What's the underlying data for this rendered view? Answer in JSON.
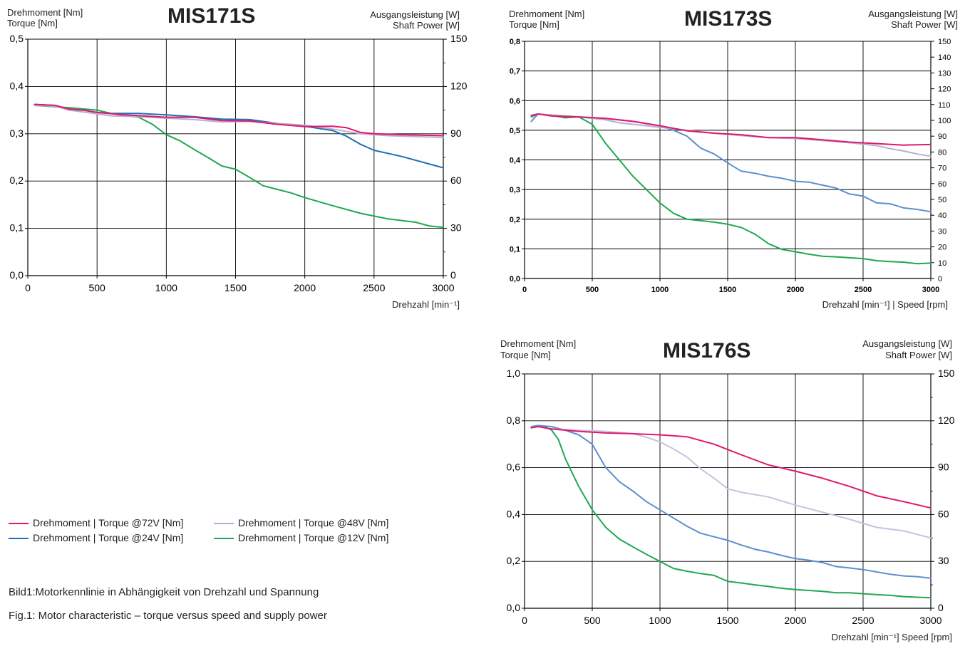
{
  "chart_data": [
    {
      "type": "line",
      "title": "MIS171S",
      "ylabel_left": [
        "Drehmoment [Nm]",
        "Torque [Nm]"
      ],
      "ylabel_right": [
        "Ausgangsleistung [W]",
        "Shaft  Power [W]"
      ],
      "xlabel": "Drehzahl [min⁻¹]",
      "x_ticks": [
        "0",
        "500",
        "1000",
        "1500",
        "2000",
        "2500",
        "3000"
      ],
      "y_ticks": [
        "0,0",
        "0,1",
        "0,2",
        "0,3",
        "0,4",
        "0,5"
      ],
      "y2_ticks": [
        "0",
        "30",
        "60",
        "90",
        "120",
        "150"
      ],
      "xlim": [
        0,
        3000
      ],
      "ylim": [
        0,
        0.5
      ],
      "y2lim": [
        0,
        150
      ],
      "grid": true,
      "series": [
        {
          "name": "Drehmoment | Torque @72V [Nm]",
          "color": "#e0186c",
          "x": [
            50,
            200,
            300,
            400,
            500,
            700,
            1000,
            1200,
            1400,
            1600,
            1800,
            2000,
            2200,
            2300,
            2400,
            2500,
            2700,
            3000
          ],
          "y": [
            0.362,
            0.36,
            0.352,
            0.35,
            0.345,
            0.34,
            0.335,
            0.335,
            0.328,
            0.327,
            0.32,
            0.315,
            0.316,
            0.313,
            0.303,
            0.3,
            0.298,
            0.296
          ]
        },
        {
          "name": "Drehmoment | Torque @48V [Nm]",
          "color": "#b7aed4",
          "x": [
            50,
            200,
            300,
            500,
            600,
            800,
            1000,
            1200,
            1400,
            1600,
            1800,
            2000,
            2200,
            2400,
            2600,
            2800,
            3000
          ],
          "y": [
            0.36,
            0.358,
            0.35,
            0.342,
            0.338,
            0.336,
            0.333,
            0.33,
            0.325,
            0.326,
            0.322,
            0.318,
            0.31,
            0.3,
            0.296,
            0.294,
            0.292
          ]
        },
        {
          "name": "Drehmoment | Torque @24V [Nm]",
          "color": "#1f6fb4",
          "x": [
            50,
            200,
            300,
            400,
            500,
            600,
            800,
            1000,
            1200,
            1400,
            1600,
            1800,
            2000,
            2200,
            2300,
            2400,
            2500,
            2700,
            3000
          ],
          "y": [
            0.362,
            0.36,
            0.35,
            0.35,
            0.345,
            0.343,
            0.343,
            0.34,
            0.336,
            0.331,
            0.33,
            0.322,
            0.316,
            0.307,
            0.295,
            0.278,
            0.265,
            0.252,
            0.228
          ]
        },
        {
          "name": "Drehmoment | Torque @12V [Nm]",
          "color": "#1fa84f",
          "x": [
            50,
            300,
            500,
            600,
            800,
            900,
            1000,
            1100,
            1200,
            1300,
            1400,
            1500,
            1600,
            1700,
            1900,
            2000,
            2200,
            2400,
            2600,
            2800,
            2900,
            3000
          ],
          "y": [
            0.36,
            0.355,
            0.35,
            0.343,
            0.335,
            0.32,
            0.298,
            0.285,
            0.267,
            0.25,
            0.232,
            0.225,
            0.208,
            0.19,
            0.175,
            0.165,
            0.148,
            0.132,
            0.12,
            0.113,
            0.105,
            0.102
          ]
        }
      ]
    },
    {
      "type": "line",
      "title": "MIS173S",
      "ylabel_left": [
        "Drehmoment [Nm]",
        "Torque [Nm]"
      ],
      "ylabel_right": [
        "Ausgangsleistung [W]",
        "Shaft Power [W]"
      ],
      "xlabel": "Drehzahl [min⁻¹]  | Speed [rpm]",
      "x_ticks": [
        "0",
        "500",
        "1000",
        "1500",
        "2000",
        "2500",
        "3000"
      ],
      "y_ticks": [
        "0,0",
        "0,1",
        "0,2",
        "0,3",
        "0,4",
        "0,5",
        "0,6",
        "0,7",
        "0,8"
      ],
      "y2_ticks": [
        "0",
        "10",
        "20",
        "30",
        "40",
        "50",
        "60",
        "70",
        "80",
        "90",
        "100",
        "110",
        "120",
        "130",
        "140",
        "150"
      ],
      "xlim": [
        0,
        3000
      ],
      "ylim": [
        0,
        0.8
      ],
      "y2lim": [
        0,
        150
      ],
      "grid": true,
      "series": [
        {
          "name": "Drehmoment | Torque @72V [Nm]",
          "color": "#e0186c",
          "x": [
            50,
            100,
            200,
            400,
            600,
            800,
            1000,
            1200,
            1400,
            1600,
            1800,
            2000,
            2200,
            2400,
            2600,
            2800,
            3000
          ],
          "y": [
            0.55,
            0.555,
            0.548,
            0.545,
            0.54,
            0.53,
            0.515,
            0.498,
            0.49,
            0.485,
            0.475,
            0.475,
            0.468,
            0.46,
            0.455,
            0.45,
            0.452
          ]
        },
        {
          "name": "Drehmoment | Torque @48V [Nm]",
          "color": "#b7aed4",
          "x": [
            50,
            100,
            200,
            400,
            600,
            700,
            800,
            1000,
            1200,
            1400,
            1600,
            1800,
            2000,
            2200,
            2400,
            2600,
            2700,
            2800,
            2900,
            3000
          ],
          "y": [
            0.55,
            0.555,
            0.552,
            0.545,
            0.535,
            0.525,
            0.52,
            0.51,
            0.5,
            0.49,
            0.482,
            0.475,
            0.472,
            0.465,
            0.458,
            0.448,
            0.438,
            0.43,
            0.42,
            0.412
          ]
        },
        {
          "name": "Drehmoment | Torque @24V [Nm]",
          "color": "#5b8fd0",
          "x": [
            50,
            100,
            200,
            400,
            600,
            800,
            1000,
            1100,
            1200,
            1300,
            1400,
            1500,
            1600,
            1700,
            1800,
            1900,
            2000,
            2100,
            2200,
            2300,
            2400,
            2500,
            2600,
            2700,
            2800,
            2900,
            3000
          ],
          "y": [
            0.53,
            0.555,
            0.55,
            0.545,
            0.54,
            0.53,
            0.515,
            0.5,
            0.48,
            0.44,
            0.42,
            0.39,
            0.362,
            0.355,
            0.345,
            0.338,
            0.328,
            0.325,
            0.315,
            0.305,
            0.285,
            0.278,
            0.255,
            0.252,
            0.238,
            0.233,
            0.225
          ]
        },
        {
          "name": "Drehmoment | Torque @12V [Nm]",
          "color": "#1fa84f",
          "x": [
            50,
            100,
            200,
            300,
            400,
            500,
            600,
            700,
            800,
            900,
            1000,
            1100,
            1200,
            1300,
            1400,
            1500,
            1600,
            1700,
            1800,
            1900,
            2000,
            2100,
            2200,
            2300,
            2400,
            2500,
            2600,
            2700,
            2800,
            2900,
            3000
          ],
          "y": [
            0.545,
            0.555,
            0.55,
            0.542,
            0.545,
            0.52,
            0.455,
            0.4,
            0.345,
            0.3,
            0.255,
            0.22,
            0.2,
            0.195,
            0.19,
            0.183,
            0.172,
            0.15,
            0.118,
            0.098,
            0.09,
            0.082,
            0.075,
            0.073,
            0.07,
            0.067,
            0.06,
            0.057,
            0.055,
            0.05,
            0.052
          ]
        }
      ]
    },
    {
      "type": "line",
      "title": "MIS176S",
      "ylabel_left": [
        "Drehmoment [Nm]",
        "Torque [Nm]"
      ],
      "ylabel_right": [
        "Ausgangsleistung [W]",
        "Shaft Power [W]"
      ],
      "xlabel": "Drehzahl [min⁻¹] Speed [rpm]",
      "x_ticks": [
        "0",
        "500",
        "1000",
        "1500",
        "2000",
        "2500",
        "3000"
      ],
      "y_ticks": [
        "0,0",
        "0,2",
        "0,4",
        "0,6",
        "0,8",
        "1,0"
      ],
      "y2_ticks": [
        "0",
        "30",
        "60",
        "90",
        "120",
        "150"
      ],
      "xlim": [
        0,
        3000
      ],
      "ylim": [
        0,
        1.0
      ],
      "y2lim": [
        0,
        150
      ],
      "grid": true,
      "series": [
        {
          "name": "Drehmoment | Torque @72V [Nm]",
          "color": "#e0186c",
          "x": [
            50,
            100,
            200,
            400,
            600,
            800,
            1000,
            1200,
            1400,
            1600,
            1800,
            2000,
            2200,
            2400,
            2600,
            2800,
            3000
          ],
          "y": [
            0.77,
            0.775,
            0.765,
            0.755,
            0.748,
            0.745,
            0.74,
            0.732,
            0.7,
            0.655,
            0.612,
            0.585,
            0.555,
            0.52,
            0.48,
            0.455,
            0.428
          ]
        },
        {
          "name": "Drehmoment | Torque @48V [Nm]",
          "color": "#c8c2dc",
          "x": [
            50,
            100,
            200,
            400,
            600,
            800,
            900,
            1000,
            1100,
            1200,
            1300,
            1400,
            1500,
            1600,
            1800,
            2000,
            2200,
            2400,
            2600,
            2800,
            3000
          ],
          "y": [
            0.77,
            0.775,
            0.765,
            0.76,
            0.755,
            0.745,
            0.73,
            0.71,
            0.68,
            0.645,
            0.595,
            0.555,
            0.51,
            0.495,
            0.475,
            0.44,
            0.41,
            0.38,
            0.345,
            0.33,
            0.3
          ]
        },
        {
          "name": "Drehmoment | Torque @24V [Nm]",
          "color": "#5b8fd0",
          "x": [
            50,
            100,
            200,
            300,
            400,
            500,
            600,
            700,
            800,
            900,
            1000,
            1100,
            1200,
            1300,
            1400,
            1500,
            1600,
            1700,
            1800,
            1900,
            2000,
            2100,
            2200,
            2300,
            2400,
            2500,
            2600,
            2700,
            2800,
            2900,
            3000
          ],
          "y": [
            0.775,
            0.78,
            0.775,
            0.76,
            0.74,
            0.7,
            0.6,
            0.54,
            0.5,
            0.455,
            0.42,
            0.385,
            0.35,
            0.32,
            0.305,
            0.29,
            0.27,
            0.252,
            0.24,
            0.225,
            0.212,
            0.205,
            0.195,
            0.178,
            0.172,
            0.165,
            0.155,
            0.145,
            0.138,
            0.135,
            0.128
          ]
        },
        {
          "name": "Drehmoment | Torque @12V [Nm]",
          "color": "#1fa84f",
          "x": [
            50,
            100,
            150,
            200,
            250,
            300,
            400,
            500,
            600,
            700,
            800,
            900,
            1000,
            1100,
            1200,
            1300,
            1400,
            1500,
            1600,
            1700,
            1800,
            1900,
            2000,
            2100,
            2200,
            2300,
            2400,
            2500,
            2600,
            2700,
            2800,
            2900,
            3000
          ],
          "y": [
            0.77,
            0.78,
            0.775,
            0.76,
            0.72,
            0.64,
            0.52,
            0.42,
            0.345,
            0.295,
            0.262,
            0.23,
            0.2,
            0.17,
            0.158,
            0.148,
            0.14,
            0.115,
            0.108,
            0.1,
            0.093,
            0.085,
            0.08,
            0.076,
            0.072,
            0.066,
            0.066,
            0.062,
            0.058,
            0.055,
            0.05,
            0.047,
            0.045
          ]
        }
      ]
    }
  ],
  "legend": {
    "items": [
      {
        "label": "Drehmoment | Torque @72V [Nm]",
        "color": "#e0186c"
      },
      {
        "label": "Drehmoment | Torque @48V [Nm]",
        "color": "#b7aed4"
      },
      {
        "label": "Drehmoment | Torque @24V [Nm]",
        "color": "#1f6fb4"
      },
      {
        "label": "Drehmoment | Torque @12V [Nm]",
        "color": "#1fa84f"
      }
    ]
  },
  "captions": {
    "de": "Bild1:Motorkennlinie in Abhängigkeit von Drehzahl und Spannung",
    "en": "Fig.1: Motor characteristic – torque versus speed and supply power"
  }
}
